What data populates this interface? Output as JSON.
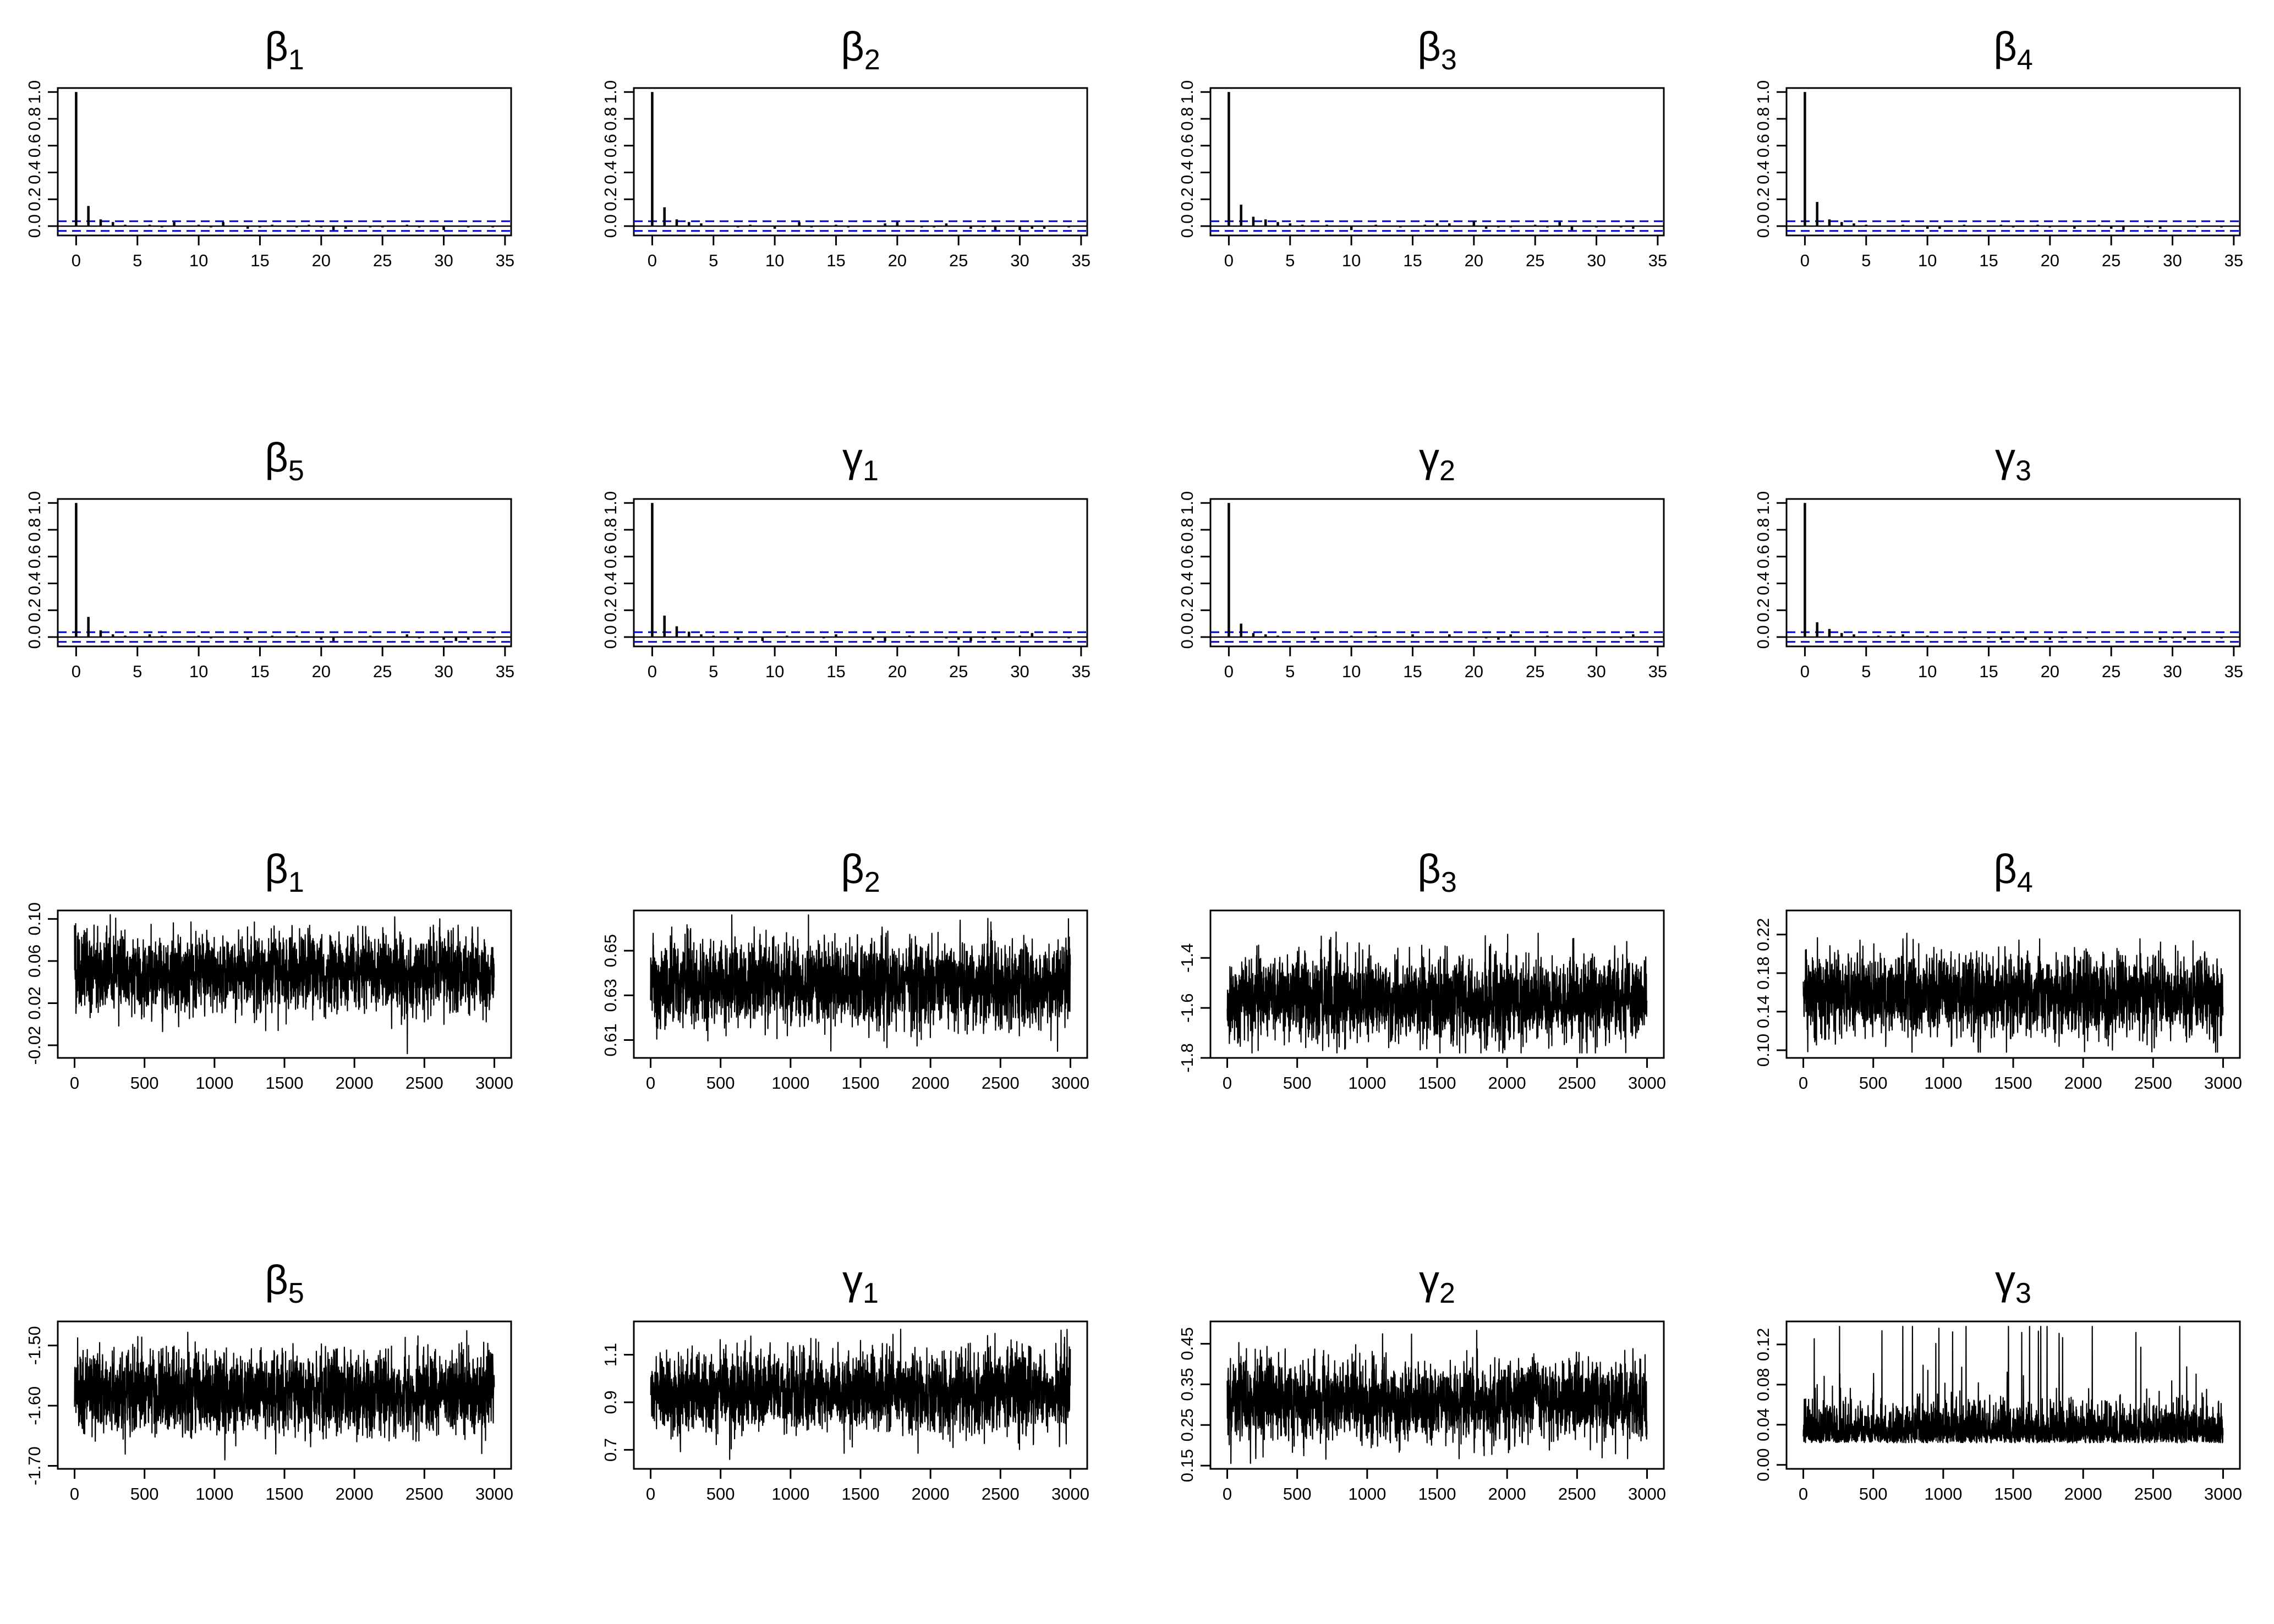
{
  "colors": {
    "bars": "#000000",
    "trace": "#000000",
    "ci_band": "#0000cc",
    "frame": "#000000",
    "background": "#ffffff"
  },
  "chart_data": [
    {
      "type": "bar",
      "kind": "acf",
      "title": "β1",
      "title_symbol": "β",
      "title_subscript": "1",
      "xlim": [
        -1.5,
        35.5
      ],
      "ylim": [
        -0.07,
        1.03
      ],
      "x_ticks": [
        0,
        5,
        10,
        15,
        20,
        25,
        30,
        35
      ],
      "y_ticks": [
        "1.0",
        "0.8",
        "0.6",
        "0.4",
        "0.2",
        "0.0"
      ],
      "ci": [
        0.036,
        -0.036
      ],
      "lags": [
        0,
        1,
        2,
        3,
        4,
        5,
        6,
        7,
        8,
        9,
        10,
        11,
        12,
        13,
        14,
        15,
        16,
        17,
        18,
        19,
        20,
        21,
        22,
        23,
        24,
        25,
        26,
        27,
        28,
        29,
        30,
        31,
        32,
        33,
        34
      ],
      "values": [
        1.0,
        0.15,
        0.05,
        0.03,
        0.01,
        0.0,
        0.01,
        -0.01,
        0.03,
        0.0,
        0.01,
        -0.01,
        0.03,
        0.0,
        -0.02,
        -0.01,
        0.01,
        0.0,
        -0.01,
        0.01,
        -0.01,
        -0.03,
        -0.02,
        0.0,
        -0.01,
        -0.01,
        0.0,
        0.01,
        -0.01,
        0.0,
        -0.03,
        0.0,
        -0.01,
        0.0,
        -0.01
      ]
    },
    {
      "type": "bar",
      "kind": "acf",
      "title": "β2",
      "title_symbol": "β",
      "title_subscript": "2",
      "xlim": [
        -1.5,
        35.5
      ],
      "ylim": [
        -0.07,
        1.03
      ],
      "x_ticks": [
        0,
        5,
        10,
        15,
        20,
        25,
        30,
        35
      ],
      "y_ticks": [
        "1.0",
        "0.8",
        "0.6",
        "0.4",
        "0.2",
        "0.0"
      ],
      "ci": [
        0.036,
        -0.036
      ],
      "lags": [
        0,
        1,
        2,
        3,
        4,
        5,
        6,
        7,
        8,
        9,
        10,
        11,
        12,
        13,
        14,
        15,
        16,
        17,
        18,
        19,
        20,
        21,
        22,
        23,
        24,
        25,
        26,
        27,
        28,
        29,
        30,
        31,
        32,
        33,
        34
      ],
      "values": [
        1.0,
        0.14,
        0.05,
        0.03,
        0.02,
        0.0,
        0.0,
        -0.01,
        0.01,
        0.0,
        -0.02,
        0.0,
        0.03,
        -0.01,
        0.0,
        0.01,
        -0.01,
        0.0,
        0.0,
        0.02,
        0.03,
        0.0,
        -0.01,
        -0.01,
        0.02,
        0.0,
        -0.02,
        -0.01,
        -0.03,
        0.0,
        -0.03,
        -0.02,
        -0.02,
        0.0,
        -0.01
      ]
    },
    {
      "type": "bar",
      "kind": "acf",
      "title": "β3",
      "title_symbol": "β",
      "title_subscript": "3",
      "xlim": [
        -1.5,
        35.5
      ],
      "ylim": [
        -0.07,
        1.03
      ],
      "x_ticks": [
        0,
        5,
        10,
        15,
        20,
        25,
        30,
        35
      ],
      "y_ticks": [
        "1.0",
        "0.8",
        "0.6",
        "0.4",
        "0.2",
        "0.0"
      ],
      "ci": [
        0.036,
        -0.036
      ],
      "lags": [
        0,
        1,
        2,
        3,
        4,
        5,
        6,
        7,
        8,
        9,
        10,
        11,
        12,
        13,
        14,
        15,
        16,
        17,
        18,
        19,
        20,
        21,
        22,
        23,
        24,
        25,
        26,
        27,
        28,
        29,
        30,
        31,
        32,
        33,
        34
      ],
      "values": [
        1.0,
        0.16,
        0.07,
        0.05,
        0.03,
        0.02,
        0.01,
        0.0,
        0.01,
        0.0,
        -0.03,
        0.0,
        0.01,
        0.0,
        -0.01,
        0.0,
        0.01,
        0.02,
        0.02,
        0.0,
        0.04,
        -0.02,
        -0.01,
        -0.01,
        0.0,
        0.01,
        -0.01,
        0.03,
        -0.03,
        0.0,
        -0.01,
        0.0,
        -0.01,
        -0.02,
        0.0
      ]
    },
    {
      "type": "bar",
      "kind": "acf",
      "title": "β4",
      "title_symbol": "β",
      "title_subscript": "4",
      "xlim": [
        -1.5,
        35.5
      ],
      "ylim": [
        -0.07,
        1.03
      ],
      "x_ticks": [
        0,
        5,
        10,
        15,
        20,
        25,
        30,
        35
      ],
      "y_ticks": [
        "1.0",
        "0.8",
        "0.6",
        "0.4",
        "0.2",
        "0.0"
      ],
      "ci": [
        0.036,
        -0.036
      ],
      "lags": [
        0,
        1,
        2,
        3,
        4,
        5,
        6,
        7,
        8,
        9,
        10,
        11,
        12,
        13,
        14,
        15,
        16,
        17,
        18,
        19,
        20,
        21,
        22,
        23,
        24,
        25,
        26,
        27,
        28,
        29,
        30,
        31,
        32,
        33,
        34
      ],
      "values": [
        1.0,
        0.18,
        0.05,
        0.03,
        0.02,
        0.01,
        0.0,
        0.0,
        0.01,
        0.0,
        -0.02,
        -0.02,
        0.0,
        0.01,
        0.0,
        0.0,
        0.01,
        -0.01,
        0.0,
        0.01,
        -0.01,
        0.0,
        -0.02,
        0.0,
        0.01,
        -0.02,
        -0.03,
        0.0,
        -0.01,
        -0.02,
        0.0,
        0.0,
        -0.01,
        0.0,
        -0.01
      ]
    },
    {
      "type": "bar",
      "kind": "acf",
      "title": "β5",
      "title_symbol": "β",
      "title_subscript": "5",
      "xlim": [
        -1.5,
        35.5
      ],
      "ylim": [
        -0.07,
        1.03
      ],
      "x_ticks": [
        0,
        5,
        10,
        15,
        20,
        25,
        30,
        35
      ],
      "y_ticks": [
        "1.0",
        "0.8",
        "0.6",
        "0.4",
        "0.2",
        "0.0"
      ],
      "ci": [
        0.036,
        -0.036
      ],
      "lags": [
        0,
        1,
        2,
        3,
        4,
        5,
        6,
        7,
        8,
        9,
        10,
        11,
        12,
        13,
        14,
        15,
        16,
        17,
        18,
        19,
        20,
        21,
        22,
        23,
        24,
        25,
        26,
        27,
        28,
        29,
        30,
        31,
        32,
        33,
        34
      ],
      "values": [
        1.0,
        0.15,
        0.05,
        0.02,
        0.01,
        0.0,
        0.02,
        0.01,
        0.0,
        0.0,
        0.01,
        -0.01,
        0.0,
        0.0,
        -0.02,
        0.0,
        0.01,
        0.0,
        0.01,
        0.0,
        -0.02,
        -0.03,
        0.0,
        0.0,
        0.01,
        0.0,
        0.0,
        0.02,
        -0.01,
        0.0,
        -0.02,
        -0.03,
        -0.02,
        0.0,
        -0.01
      ]
    },
    {
      "type": "bar",
      "kind": "acf",
      "title": "γ1",
      "title_symbol": "γ",
      "title_subscript": "1",
      "xlim": [
        -1.5,
        35.5
      ],
      "ylim": [
        -0.07,
        1.03
      ],
      "x_ticks": [
        0,
        5,
        10,
        15,
        20,
        25,
        30,
        35
      ],
      "y_ticks": [
        "1.0",
        "0.8",
        "0.6",
        "0.4",
        "0.2",
        "0.0"
      ],
      "ci": [
        0.036,
        -0.036
      ],
      "lags": [
        0,
        1,
        2,
        3,
        4,
        5,
        6,
        7,
        8,
        9,
        10,
        11,
        12,
        13,
        14,
        15,
        16,
        17,
        18,
        19,
        20,
        21,
        22,
        23,
        24,
        25,
        26,
        27,
        28,
        29,
        30,
        31,
        32,
        33,
        34
      ],
      "values": [
        1.0,
        0.16,
        0.08,
        0.04,
        0.02,
        0.01,
        0.0,
        -0.02,
        0.0,
        -0.03,
        0.0,
        0.01,
        0.0,
        0.0,
        -0.01,
        0.02,
        0.0,
        0.0,
        -0.02,
        -0.03,
        0.0,
        0.01,
        0.0,
        0.0,
        -0.01,
        -0.02,
        -0.03,
        -0.01,
        -0.02,
        0.0,
        0.01,
        0.03,
        0.0,
        0.0,
        -0.01
      ]
    },
    {
      "type": "bar",
      "kind": "acf",
      "title": "γ2",
      "title_symbol": "γ",
      "title_subscript": "2",
      "xlim": [
        -1.5,
        35.5
      ],
      "ylim": [
        -0.07,
        1.03
      ],
      "x_ticks": [
        0,
        5,
        10,
        15,
        20,
        25,
        30,
        35
      ],
      "y_ticks": [
        "1.0",
        "0.8",
        "0.6",
        "0.4",
        "0.2",
        "0.0"
      ],
      "ci": [
        0.036,
        -0.036
      ],
      "lags": [
        0,
        1,
        2,
        3,
        4,
        5,
        6,
        7,
        8,
        9,
        10,
        11,
        12,
        13,
        14,
        15,
        16,
        17,
        18,
        19,
        20,
        21,
        22,
        23,
        24,
        25,
        26,
        27,
        28,
        29,
        30,
        31,
        32,
        33,
        34
      ],
      "values": [
        1.0,
        0.1,
        0.03,
        0.02,
        0.01,
        0.0,
        0.0,
        -0.02,
        0.0,
        0.0,
        0.01,
        0.0,
        0.01,
        0.0,
        0.0,
        0.02,
        0.0,
        0.0,
        0.02,
        0.0,
        0.0,
        -0.01,
        -0.02,
        0.02,
        0.0,
        0.0,
        0.01,
        0.0,
        0.0,
        -0.01,
        0.0,
        0.0,
        -0.01,
        0.02,
        0.0
      ]
    },
    {
      "type": "bar",
      "kind": "acf",
      "title": "γ3",
      "title_symbol": "γ",
      "title_subscript": "3",
      "xlim": [
        -1.5,
        35.5
      ],
      "ylim": [
        -0.07,
        1.03
      ],
      "x_ticks": [
        0,
        5,
        10,
        15,
        20,
        25,
        30,
        35
      ],
      "y_ticks": [
        "1.0",
        "0.8",
        "0.6",
        "0.4",
        "0.2",
        "0.0"
      ],
      "ci": [
        0.036,
        -0.036
      ],
      "lags": [
        0,
        1,
        2,
        3,
        4,
        5,
        6,
        7,
        8,
        9,
        10,
        11,
        12,
        13,
        14,
        15,
        16,
        17,
        18,
        19,
        20,
        21,
        22,
        23,
        24,
        25,
        26,
        27,
        28,
        29,
        30,
        31,
        32,
        33,
        34
      ],
      "values": [
        1.0,
        0.11,
        0.06,
        0.03,
        0.02,
        0.0,
        0.01,
        0.01,
        0.02,
        0.0,
        0.01,
        0.0,
        0.0,
        -0.01,
        0.0,
        -0.01,
        -0.02,
        -0.01,
        -0.02,
        0.0,
        -0.02,
        -0.01,
        0.0,
        -0.01,
        0.0,
        0.0,
        0.0,
        0.0,
        0.0,
        -0.02,
        -0.01,
        -0.02,
        0.0,
        0.0,
        -0.01
      ]
    },
    {
      "type": "line",
      "kind": "trace",
      "title": "β1",
      "title_symbol": "β",
      "title_subscript": "1",
      "xlim": [
        -120,
        3120
      ],
      "ylim": [
        -0.032,
        0.108
      ],
      "x_ticks": [
        0,
        500,
        1000,
        1500,
        2000,
        2500,
        3000
      ],
      "y_ticks": [
        "0.10",
        "0.06",
        "0.02",
        "-0.02"
      ],
      "n": 3000,
      "center": 0.048,
      "spread": 0.017,
      "y_range": [
        -0.028,
        0.104
      ],
      "positive_only": false
    },
    {
      "type": "line",
      "kind": "trace",
      "title": "β2",
      "title_symbol": "β",
      "title_subscript": "2",
      "xlim": [
        -120,
        3120
      ],
      "ylim": [
        0.602,
        0.668
      ],
      "x_ticks": [
        0,
        500,
        1000,
        1500,
        2000,
        2500,
        3000
      ],
      "y_ticks": [
        "0.65",
        "0.63",
        "0.61"
      ],
      "n": 3000,
      "center": 0.635,
      "spread": 0.009,
      "y_range": [
        0.605,
        0.666
      ],
      "positive_only": false
    },
    {
      "type": "line",
      "kind": "trace",
      "title": "β3",
      "title_symbol": "β",
      "title_subscript": "3",
      "xlim": [
        -120,
        3120
      ],
      "ylim": [
        -1.8,
        -1.21
      ],
      "x_ticks": [
        0,
        500,
        1000,
        1500,
        2000,
        2500,
        3000
      ],
      "y_ticks": [
        "-1.4",
        "-1.6",
        "-1.8"
      ],
      "n": 3000,
      "center": -1.565,
      "spread": 0.08,
      "y_range": [
        -1.78,
        -1.27
      ],
      "positive_only": false
    },
    {
      "type": "line",
      "kind": "trace",
      "title": "β4",
      "title_symbol": "β",
      "title_subscript": "4",
      "xlim": [
        -120,
        3120
      ],
      "ylim": [
        0.092,
        0.245
      ],
      "x_ticks": [
        0,
        500,
        1000,
        1500,
        2000,
        2500,
        3000
      ],
      "y_ticks": [
        "0.22",
        "0.18",
        "0.14",
        "0.10"
      ],
      "n": 3000,
      "center": 0.157,
      "spread": 0.02,
      "y_range": [
        0.098,
        0.238
      ],
      "positive_only": false
    },
    {
      "type": "line",
      "kind": "trace",
      "title": "β5",
      "title_symbol": "β",
      "title_subscript": "5",
      "xlim": [
        -120,
        3120
      ],
      "ylim": [
        -1.705,
        -1.46
      ],
      "x_ticks": [
        0,
        500,
        1000,
        1500,
        2000,
        2500,
        3000
      ],
      "y_ticks": [
        "-1.50",
        "-1.60",
        "-1.70"
      ],
      "n": 3000,
      "center": -1.578,
      "spread": 0.032,
      "y_range": [
        -1.69,
        -1.475
      ],
      "positive_only": false
    },
    {
      "type": "line",
      "kind": "trace",
      "title": "γ1",
      "title_symbol": "γ",
      "title_subscript": "1",
      "xlim": [
        -120,
        3120
      ],
      "ylim": [
        0.62,
        1.24
      ],
      "x_ticks": [
        0,
        500,
        1000,
        1500,
        2000,
        2500,
        3000
      ],
      "y_ticks": [
        "1.1",
        "0.9",
        "0.7"
      ],
      "n": 3000,
      "center": 0.945,
      "spread": 0.08,
      "y_range": [
        0.655,
        1.22
      ],
      "positive_only": false
    },
    {
      "type": "line",
      "kind": "trace",
      "title": "γ2",
      "title_symbol": "γ",
      "title_subscript": "2",
      "xlim": [
        -120,
        3120
      ],
      "ylim": [
        0.142,
        0.505
      ],
      "x_ticks": [
        0,
        500,
        1000,
        1500,
        2000,
        2500,
        3000
      ],
      "y_ticks": [
        "0.45",
        "0.35",
        "0.25",
        "0.15"
      ],
      "n": 3000,
      "center": 0.31,
      "spread": 0.045,
      "y_range": [
        0.155,
        0.5
      ],
      "positive_only": false
    },
    {
      "type": "line",
      "kind": "trace",
      "title": "γ3",
      "title_symbol": "γ",
      "title_subscript": "3",
      "xlim": [
        -120,
        3120
      ],
      "ylim": [
        -0.004,
        0.143
      ],
      "x_ticks": [
        0,
        500,
        1000,
        1500,
        2000,
        2500,
        3000
      ],
      "y_ticks": [
        "0.12",
        "0.08",
        "0.04",
        "0.00"
      ],
      "n": 3000,
      "center": 0.022,
      "spread": 0.018,
      "y_range": [
        0.0005,
        0.138
      ],
      "positive_only": true
    }
  ]
}
